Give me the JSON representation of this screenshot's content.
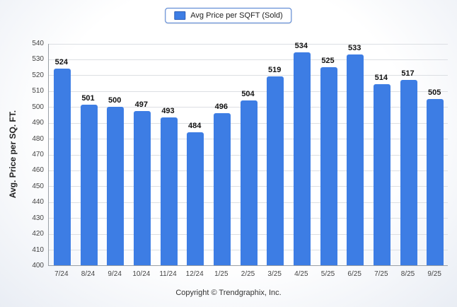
{
  "legend": {
    "label": "Avg Price per SQFT (Sold)",
    "color": "#3d7de4"
  },
  "footer": {
    "text": "Copyright © Trendgraphix, Inc."
  },
  "chart_data": {
    "type": "bar",
    "title": "",
    "categories": [
      "7/24",
      "8/24",
      "9/24",
      "10/24",
      "11/24",
      "12/24",
      "1/25",
      "2/25",
      "3/25",
      "4/25",
      "5/25",
      "6/25",
      "7/25",
      "8/25",
      "9/25"
    ],
    "values": [
      524,
      501,
      500,
      497,
      493,
      484,
      496,
      504,
      519,
      534,
      525,
      533,
      514,
      517,
      505
    ],
    "xlabel": "",
    "ylabel": "Avg. Price per SQ. FT.",
    "ylim": [
      400,
      540
    ],
    "ytick_step": 10,
    "grid": true,
    "legend_position": "top",
    "bar_color": "#3d7de4",
    "data_labels": true
  }
}
